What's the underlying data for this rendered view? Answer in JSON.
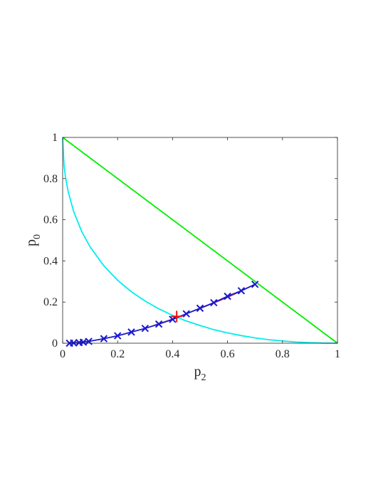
{
  "chart_data": {
    "type": "line",
    "title": "",
    "xlabel": "p",
    "xlabel_subscript": "2",
    "ylabel": "p",
    "ylabel_subscript": "0",
    "xlim": [
      0,
      1
    ],
    "ylim": [
      0,
      1
    ],
    "xticks": [
      "0",
      "0.2",
      "0.4",
      "0.6",
      "0.8",
      "1"
    ],
    "yticks": [
      "0",
      "0.2",
      "0.4",
      "0.6",
      "0.8",
      "1"
    ],
    "grid": false,
    "legend": "none",
    "series": [
      {
        "kind": "line",
        "color": "#00ee00",
        "x": [
          0,
          1
        ],
        "y": [
          1,
          0
        ]
      },
      {
        "kind": "line",
        "color": "#00eeee",
        "x": [
          0,
          0.005,
          0.01,
          0.02,
          0.04,
          0.07,
          0.1,
          0.15,
          0.2,
          0.25,
          0.3,
          0.35,
          0.4,
          0.45,
          0.5,
          0.55,
          0.6,
          0.65,
          0.7,
          0.75,
          0.8,
          0.85,
          0.9,
          0.95,
          1
        ],
        "y": [
          1,
          0.864,
          0.81,
          0.737,
          0.64,
          0.541,
          0.468,
          0.376,
          0.306,
          0.25,
          0.205,
          0.167,
          0.135,
          0.108,
          0.086,
          0.066,
          0.05,
          0.037,
          0.026,
          0.017,
          0.011,
          0.0056,
          0.0026,
          0.0006,
          0
        ]
      },
      {
        "kind": "line",
        "color": "#cc2222",
        "x": [
          0.02,
          0.1,
          0.2,
          0.3,
          0.4,
          0.5,
          0.6,
          0.7
        ],
        "y": [
          0.0,
          0.009,
          0.036,
          0.072,
          0.118,
          0.168,
          0.222,
          0.285
        ]
      },
      {
        "kind": "line+markers",
        "marker": "x",
        "color": "#1a1acc",
        "x": [
          0.025,
          0.04,
          0.06,
          0.075,
          0.095,
          0.15,
          0.2,
          0.25,
          0.3,
          0.35,
          0.4,
          0.45,
          0.5,
          0.55,
          0.6,
          0.65,
          0.7
        ],
        "y": [
          0.0,
          0.001,
          0.003,
          0.005,
          0.009,
          0.022,
          0.036,
          0.054,
          0.072,
          0.093,
          0.116,
          0.143,
          0.17,
          0.197,
          0.228,
          0.255,
          0.286
        ]
      },
      {
        "kind": "marker",
        "marker": "+",
        "color": "#ee1111",
        "x": [
          0.415
        ],
        "y": [
          0.13
        ]
      }
    ]
  }
}
